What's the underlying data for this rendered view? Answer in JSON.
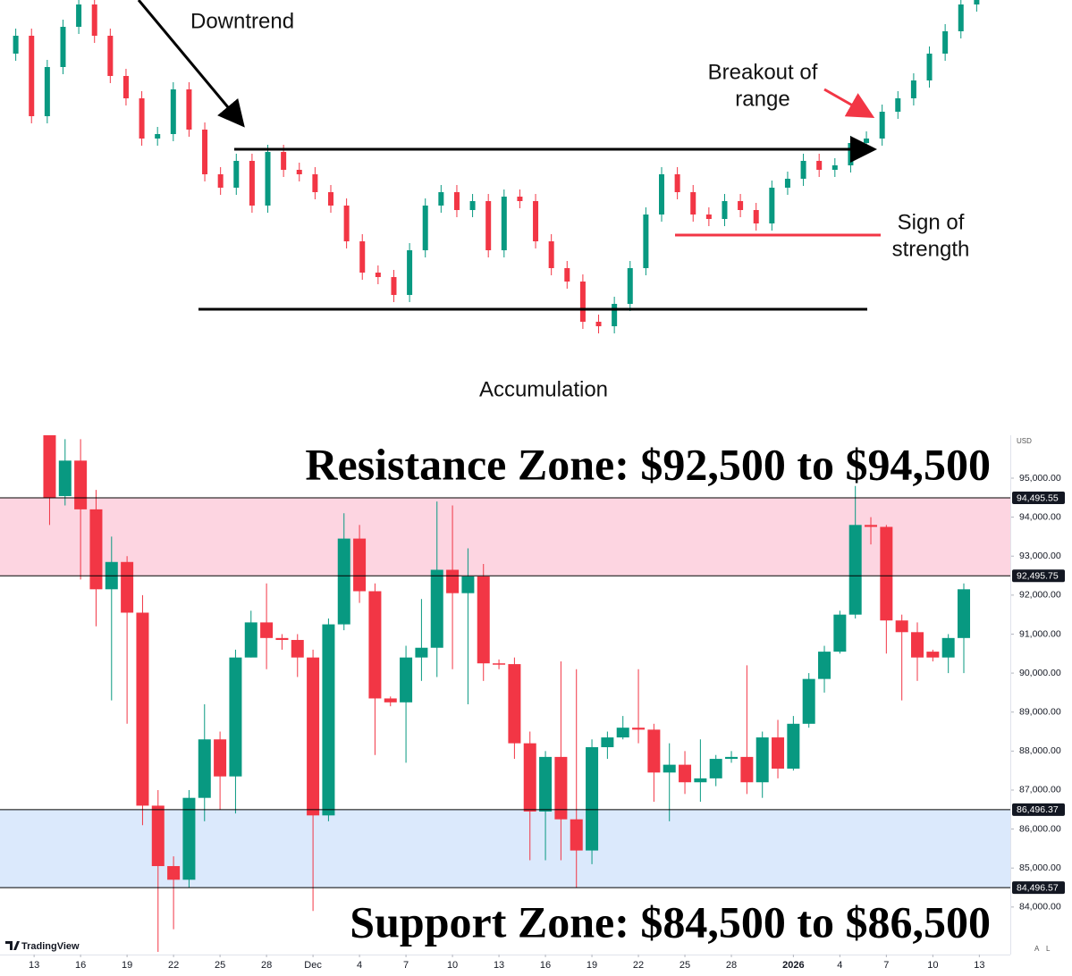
{
  "chart_data": [
    {
      "type": "candlestick",
      "annotations": [
        {
          "lines": [
            "Downtrend"
          ]
        },
        {
          "lines": [
            "Breakout of",
            "range"
          ],
          "color": "#f23645"
        },
        {
          "lines": [
            "Sign of",
            "strength"
          ],
          "color": "#f23645"
        },
        {
          "lines": [
            "Accumulation"
          ]
        }
      ],
      "levels": [
        {
          "value": 303,
          "color": "#000000"
        },
        {
          "value": 124,
          "color": "#000000"
        },
        {
          "value": 207,
          "color": "#f23645"
        }
      ],
      "up_color": "#089981",
      "down_color": "#f23645",
      "xlim": [
        -1,
        62
      ],
      "ylim": [
        0,
        470
      ],
      "open": [
        410,
        430,
        340,
        395,
        440,
        465,
        430,
        385,
        360,
        315,
        320,
        370,
        325,
        275,
        260,
        290,
        240,
        300,
        280,
        275,
        255,
        240,
        200,
        165,
        160,
        140,
        190,
        240,
        255,
        235,
        245,
        190,
        250,
        245,
        200,
        170,
        155,
        110,
        105,
        130,
        170,
        230,
        275,
        255,
        230,
        225,
        245,
        235,
        220,
        260,
        270,
        290,
        280,
        285,
        310,
        315,
        345,
        360,
        380,
        410,
        435,
        465
      ],
      "high": [
        438,
        438,
        403,
        448,
        473,
        473,
        438,
        393,
        368,
        328,
        378,
        378,
        333,
        283,
        298,
        298,
        308,
        308,
        288,
        283,
        263,
        248,
        208,
        173,
        168,
        198,
        248,
        263,
        263,
        253,
        253,
        258,
        258,
        253,
        208,
        178,
        163,
        118,
        138,
        178,
        238,
        283,
        283,
        263,
        238,
        253,
        253,
        243,
        268,
        278,
        298,
        298,
        293,
        318,
        323,
        353,
        368,
        388,
        418,
        443,
        473,
        483
      ],
      "low": [
        402,
        332,
        332,
        387,
        432,
        422,
        377,
        352,
        307,
        307,
        312,
        317,
        267,
        252,
        252,
        232,
        232,
        272,
        267,
        247,
        232,
        192,
        157,
        152,
        132,
        132,
        182,
        232,
        227,
        227,
        182,
        182,
        237,
        192,
        162,
        147,
        102,
        97,
        97,
        122,
        162,
        222,
        247,
        222,
        217,
        217,
        227,
        212,
        212,
        252,
        262,
        272,
        272,
        277,
        302,
        307,
        337,
        352,
        372,
        402,
        427,
        457
      ],
      "close": [
        430,
        340,
        395,
        440,
        465,
        430,
        385,
        360,
        315,
        320,
        370,
        325,
        275,
        260,
        290,
        240,
        300,
        280,
        275,
        255,
        240,
        200,
        165,
        160,
        140,
        190,
        240,
        255,
        235,
        245,
        190,
        250,
        245,
        200,
        170,
        155,
        110,
        105,
        130,
        170,
        230,
        275,
        255,
        230,
        225,
        245,
        235,
        220,
        260,
        270,
        290,
        280,
        285,
        310,
        315,
        345,
        360,
        380,
        410,
        435,
        465,
        475
      ]
    },
    {
      "type": "candlestick",
      "titles": [
        "Resistance Zone: $92,500 to $94,500",
        "Support Zone: $84,500 to $86,500"
      ],
      "up_color": "#089981",
      "down_color": "#f23645",
      "zones": [
        {
          "low": {
            "value": 92495.75,
            "label": "92,495.75"
          },
          "high": {
            "value": 94495.55,
            "label": "94,495.55"
          },
          "color": "#fdd5e1"
        },
        {
          "low": {
            "value": 84496.57,
            "label": "84,496.57"
          },
          "high": {
            "value": 86496.37,
            "label": "86,496.37"
          },
          "color": "#dbe9fc"
        }
      ],
      "xlim": [
        -3.2,
        62
      ],
      "ylim": [
        82850,
        96100
      ],
      "yticks": [
        {
          "value": 84000,
          "label": "84,000.00"
        },
        {
          "value": 85000,
          "label": "85,000.00"
        },
        {
          "value": 86000,
          "label": "86,000.00"
        },
        {
          "value": 87000,
          "label": "87,000.00"
        },
        {
          "value": 88000,
          "label": "88,000.00"
        },
        {
          "value": 89000,
          "label": "89,000.00"
        },
        {
          "value": 90000,
          "label": "90,000.00"
        },
        {
          "value": 91000,
          "label": "91,000.00"
        },
        {
          "value": 92000,
          "label": "92,000.00"
        },
        {
          "value": 93000,
          "label": "93,000.00"
        },
        {
          "value": 94000,
          "label": "94,000.00"
        },
        {
          "value": 95000,
          "label": "95,000.00"
        }
      ],
      "xticks": [
        {
          "value": -1,
          "label": "13"
        },
        {
          "value": 2,
          "label": "16"
        },
        {
          "value": 5,
          "label": "19"
        },
        {
          "value": 8,
          "label": "22"
        },
        {
          "value": 11,
          "label": "25"
        },
        {
          "value": 14,
          "label": "28"
        },
        {
          "value": 17,
          "label": "Dec"
        },
        {
          "value": 20,
          "label": "4"
        },
        {
          "value": 23,
          "label": "7"
        },
        {
          "value": 26,
          "label": "10"
        },
        {
          "value": 29,
          "label": "13"
        },
        {
          "value": 32,
          "label": "16"
        },
        {
          "value": 35,
          "label": "19"
        },
        {
          "value": 38,
          "label": "22"
        },
        {
          "value": 41,
          "label": "25"
        },
        {
          "value": 44,
          "label": "28"
        },
        {
          "value": 48,
          "label": "2026",
          "bold": true
        },
        {
          "value": 51,
          "label": "4"
        },
        {
          "value": 54,
          "label": "7"
        },
        {
          "value": 57,
          "label": "10"
        },
        {
          "value": 60,
          "label": "13"
        }
      ],
      "open": [
        96500,
        94540,
        95450,
        94200,
        92150,
        92850,
        91550,
        86600,
        85050,
        84700,
        86800,
        88300,
        87350,
        90400,
        91300,
        90900,
        90850,
        90400,
        86350,
        91250,
        93450,
        92100,
        89350,
        89250,
        90400,
        90650,
        92650,
        92050,
        92480,
        90250,
        90230,
        88200,
        86450,
        87850,
        86250,
        85450,
        88100,
        88350,
        88600,
        88550,
        87450,
        87650,
        87200,
        87300,
        87800,
        87850,
        87200,
        88350,
        87550,
        88700,
        89850,
        90550,
        91500,
        93800,
        93750,
        91350,
        91050,
        90550,
        90400,
        90900
      ],
      "high": [
        97000,
        96000,
        96000,
        94700,
        93500,
        93000,
        92000,
        87000,
        85300,
        87000,
        89200,
        88500,
        90600,
        91600,
        92300,
        91000,
        91000,
        90600,
        91400,
        94100,
        93800,
        92300,
        89400,
        90700,
        91900,
        94400,
        94300,
        93200,
        92800,
        90350,
        90400,
        88500,
        88000,
        90300,
        90100,
        88300,
        88500,
        88900,
        90100,
        88700,
        88200,
        88000,
        88300,
        87900,
        88000,
        90200,
        88500,
        88800,
        88900,
        90000,
        90700,
        91600,
        94800,
        94000,
        93800,
        91500,
        91300,
        90600,
        91000,
        92300
      ],
      "low": [
        93800,
        94300,
        92400,
        91200,
        89300,
        88700,
        86100,
        82700,
        83430,
        84500,
        86200,
        86500,
        86400,
        90400,
        90100,
        90600,
        89900,
        83900,
        86200,
        91100,
        91800,
        87900,
        89150,
        87700,
        89800,
        89900,
        90100,
        89200,
        89800,
        90100,
        87800,
        85200,
        85200,
        85200,
        84500,
        85100,
        87800,
        88300,
        88200,
        86700,
        86200,
        86900,
        86700,
        87100,
        87700,
        86900,
        86800,
        87300,
        87500,
        88600,
        89500,
        90500,
        91400,
        93300,
        90500,
        89300,
        89800,
        90300,
        90000,
        90000
      ],
      "close": [
        94500,
        95450,
        94200,
        92150,
        92850,
        91550,
        86600,
        85050,
        84700,
        86800,
        88300,
        87350,
        90400,
        91300,
        90900,
        90850,
        90400,
        86350,
        91250,
        93450,
        92100,
        89350,
        89250,
        90400,
        90650,
        92650,
        92050,
        92480,
        90250,
        90230,
        88200,
        86450,
        87850,
        86250,
        85450,
        88100,
        88350,
        88600,
        88550,
        87450,
        87650,
        87200,
        87300,
        87800,
        87850,
        87200,
        88350,
        87550,
        88700,
        89850,
        90550,
        91500,
        93800,
        93750,
        91350,
        91050,
        90400,
        90400,
        90900,
        92150
      ]
    }
  ],
  "ui": {
    "currency": "USD",
    "brand": "TradingView",
    "buttons": [
      "A",
      "L"
    ]
  }
}
